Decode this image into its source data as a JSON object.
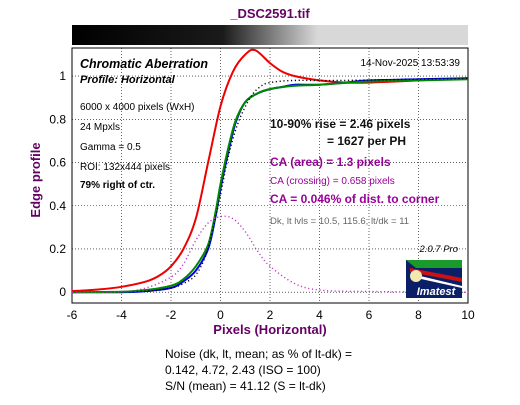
{
  "chart_data": {
    "type": "line",
    "title": "_DSC2591.tif",
    "xlabel": "Pixels (Horizontal)",
    "ylabel": "Edge profile",
    "xlim": [
      -6,
      10
    ],
    "ylim": [
      -0.05,
      1.13
    ],
    "x_ticks": [
      "-6",
      "-4",
      "-2",
      "0",
      "2",
      "4",
      "6",
      "8",
      "10"
    ],
    "y_ticks": [
      "0",
      "0.2",
      "0.4",
      "0.6",
      "0.8",
      "1"
    ],
    "grid": true,
    "series": [
      {
        "color": "#ee0000",
        "style": "solid",
        "points": [
          [
            -6,
            0.005
          ],
          [
            -5,
            0.012
          ],
          [
            -4,
            0.025
          ],
          [
            -3,
            0.05
          ],
          [
            -2.5,
            0.075
          ],
          [
            -2,
            0.12
          ],
          [
            -1.5,
            0.2
          ],
          [
            -1,
            0.34
          ],
          [
            -0.5,
            0.6
          ],
          [
            0,
            0.86
          ],
          [
            0.5,
            1.02
          ],
          [
            1,
            1.1
          ],
          [
            1.4,
            1.12
          ],
          [
            2,
            1.06
          ],
          [
            2.5,
            1.02
          ],
          [
            3,
            1.0
          ],
          [
            4,
            0.98
          ],
          [
            5,
            0.97
          ],
          [
            6,
            0.97
          ],
          [
            8,
            0.98
          ],
          [
            10,
            0.99
          ]
        ]
      },
      {
        "color": "#0000ee",
        "style": "solid",
        "points": [
          [
            -6,
            0.0
          ],
          [
            -4,
            0.0
          ],
          [
            -3,
            0.005
          ],
          [
            -2,
            0.02
          ],
          [
            -1.5,
            0.05
          ],
          [
            -1,
            0.1
          ],
          [
            -0.5,
            0.2
          ],
          [
            -0.2,
            0.35
          ],
          [
            0,
            0.48
          ],
          [
            0.3,
            0.64
          ],
          [
            0.6,
            0.78
          ],
          [
            1,
            0.88
          ],
          [
            1.5,
            0.92
          ],
          [
            2,
            0.94
          ],
          [
            2.5,
            0.95
          ],
          [
            3,
            0.96
          ],
          [
            4,
            0.96
          ],
          [
            5,
            0.97
          ],
          [
            6,
            0.98
          ],
          [
            8,
            0.985
          ],
          [
            10,
            0.99
          ]
        ]
      },
      {
        "color": "#008800",
        "style": "solid",
        "points": [
          [
            -6,
            0.0
          ],
          [
            -4,
            0.002
          ],
          [
            -3,
            0.01
          ],
          [
            -2,
            0.03
          ],
          [
            -1.5,
            0.06
          ],
          [
            -1,
            0.12
          ],
          [
            -0.5,
            0.22
          ],
          [
            -0.2,
            0.37
          ],
          [
            0,
            0.5
          ],
          [
            0.3,
            0.66
          ],
          [
            0.6,
            0.79
          ],
          [
            1,
            0.88
          ],
          [
            1.5,
            0.92
          ],
          [
            2,
            0.94
          ],
          [
            3,
            0.955
          ],
          [
            4,
            0.96
          ],
          [
            6,
            0.975
          ],
          [
            8,
            0.98
          ],
          [
            10,
            0.985
          ]
        ]
      },
      {
        "color": "#000000",
        "style": "dotted",
        "points": [
          [
            -6,
            0.0
          ],
          [
            -3,
            0.005
          ],
          [
            -2,
            0.02
          ],
          [
            -1.5,
            0.04
          ],
          [
            -1,
            0.08
          ],
          [
            -0.6,
            0.17
          ],
          [
            -0.3,
            0.3
          ],
          [
            0,
            0.45
          ],
          [
            0.3,
            0.62
          ],
          [
            0.7,
            0.78
          ],
          [
            1.2,
            0.9
          ],
          [
            1.6,
            0.95
          ],
          [
            2,
            0.97
          ],
          [
            3,
            0.98
          ],
          [
            5,
            0.98
          ],
          [
            10,
            0.99
          ]
        ]
      },
      {
        "color": "#cc33cc",
        "style": "dotted",
        "points": [
          [
            -6,
            0.0
          ],
          [
            -4,
            0.003
          ],
          [
            -3,
            0.02
          ],
          [
            -2,
            0.07
          ],
          [
            -1.5,
            0.13
          ],
          [
            -1,
            0.24
          ],
          [
            -0.5,
            0.32
          ],
          [
            0,
            0.35
          ],
          [
            0.5,
            0.34
          ],
          [
            1,
            0.28
          ],
          [
            1.5,
            0.19
          ],
          [
            2,
            0.12
          ],
          [
            3,
            0.04
          ],
          [
            4,
            0.01
          ],
          [
            6,
            0.003
          ],
          [
            10,
            0.0
          ]
        ]
      }
    ]
  },
  "annotations": {
    "chart_title": "Chromatic Aberration",
    "profile": "Profile: Horizontal",
    "timestamp": "14-Nov-2025 13:53:39",
    "info_lines": [
      "6000 x 4000 pixels (WxH)",
      "24 Mpxls",
      "Gamma = 0.5",
      "ROI: 132x444 pixels"
    ],
    "position": "79% right of ctr.",
    "rise_line1": "10-90% rise = 2.46 pixels",
    "rise_line2": "= 1627 per PH",
    "ca_area": "CA (area) = 1.3 pixels",
    "ca_crossing": "CA (crossing) = 0.658 pixels",
    "ca_corner": "CA = 0.046% of dist. to corner",
    "dk_levels": "Dk, lt lvls = 10.5, 115.6;  lt/dk = 11",
    "version": "2.0.7  Pro",
    "logo_text": "Imatest"
  },
  "footer": {
    "noise_line1": "Noise (dk, lt, mean; as % of lt-dk) =",
    "noise_line2": "0.142,  4.72,  2.43  (ISO = 100)",
    "noise_line3": "S/N (mean) = 41.12  (S = lt-dk)"
  },
  "colors": {
    "rise": "#111111",
    "ca": "#990099",
    "dk": "#666666",
    "axis_label": "#660066",
    "logo_bg": "#0a1f66"
  }
}
